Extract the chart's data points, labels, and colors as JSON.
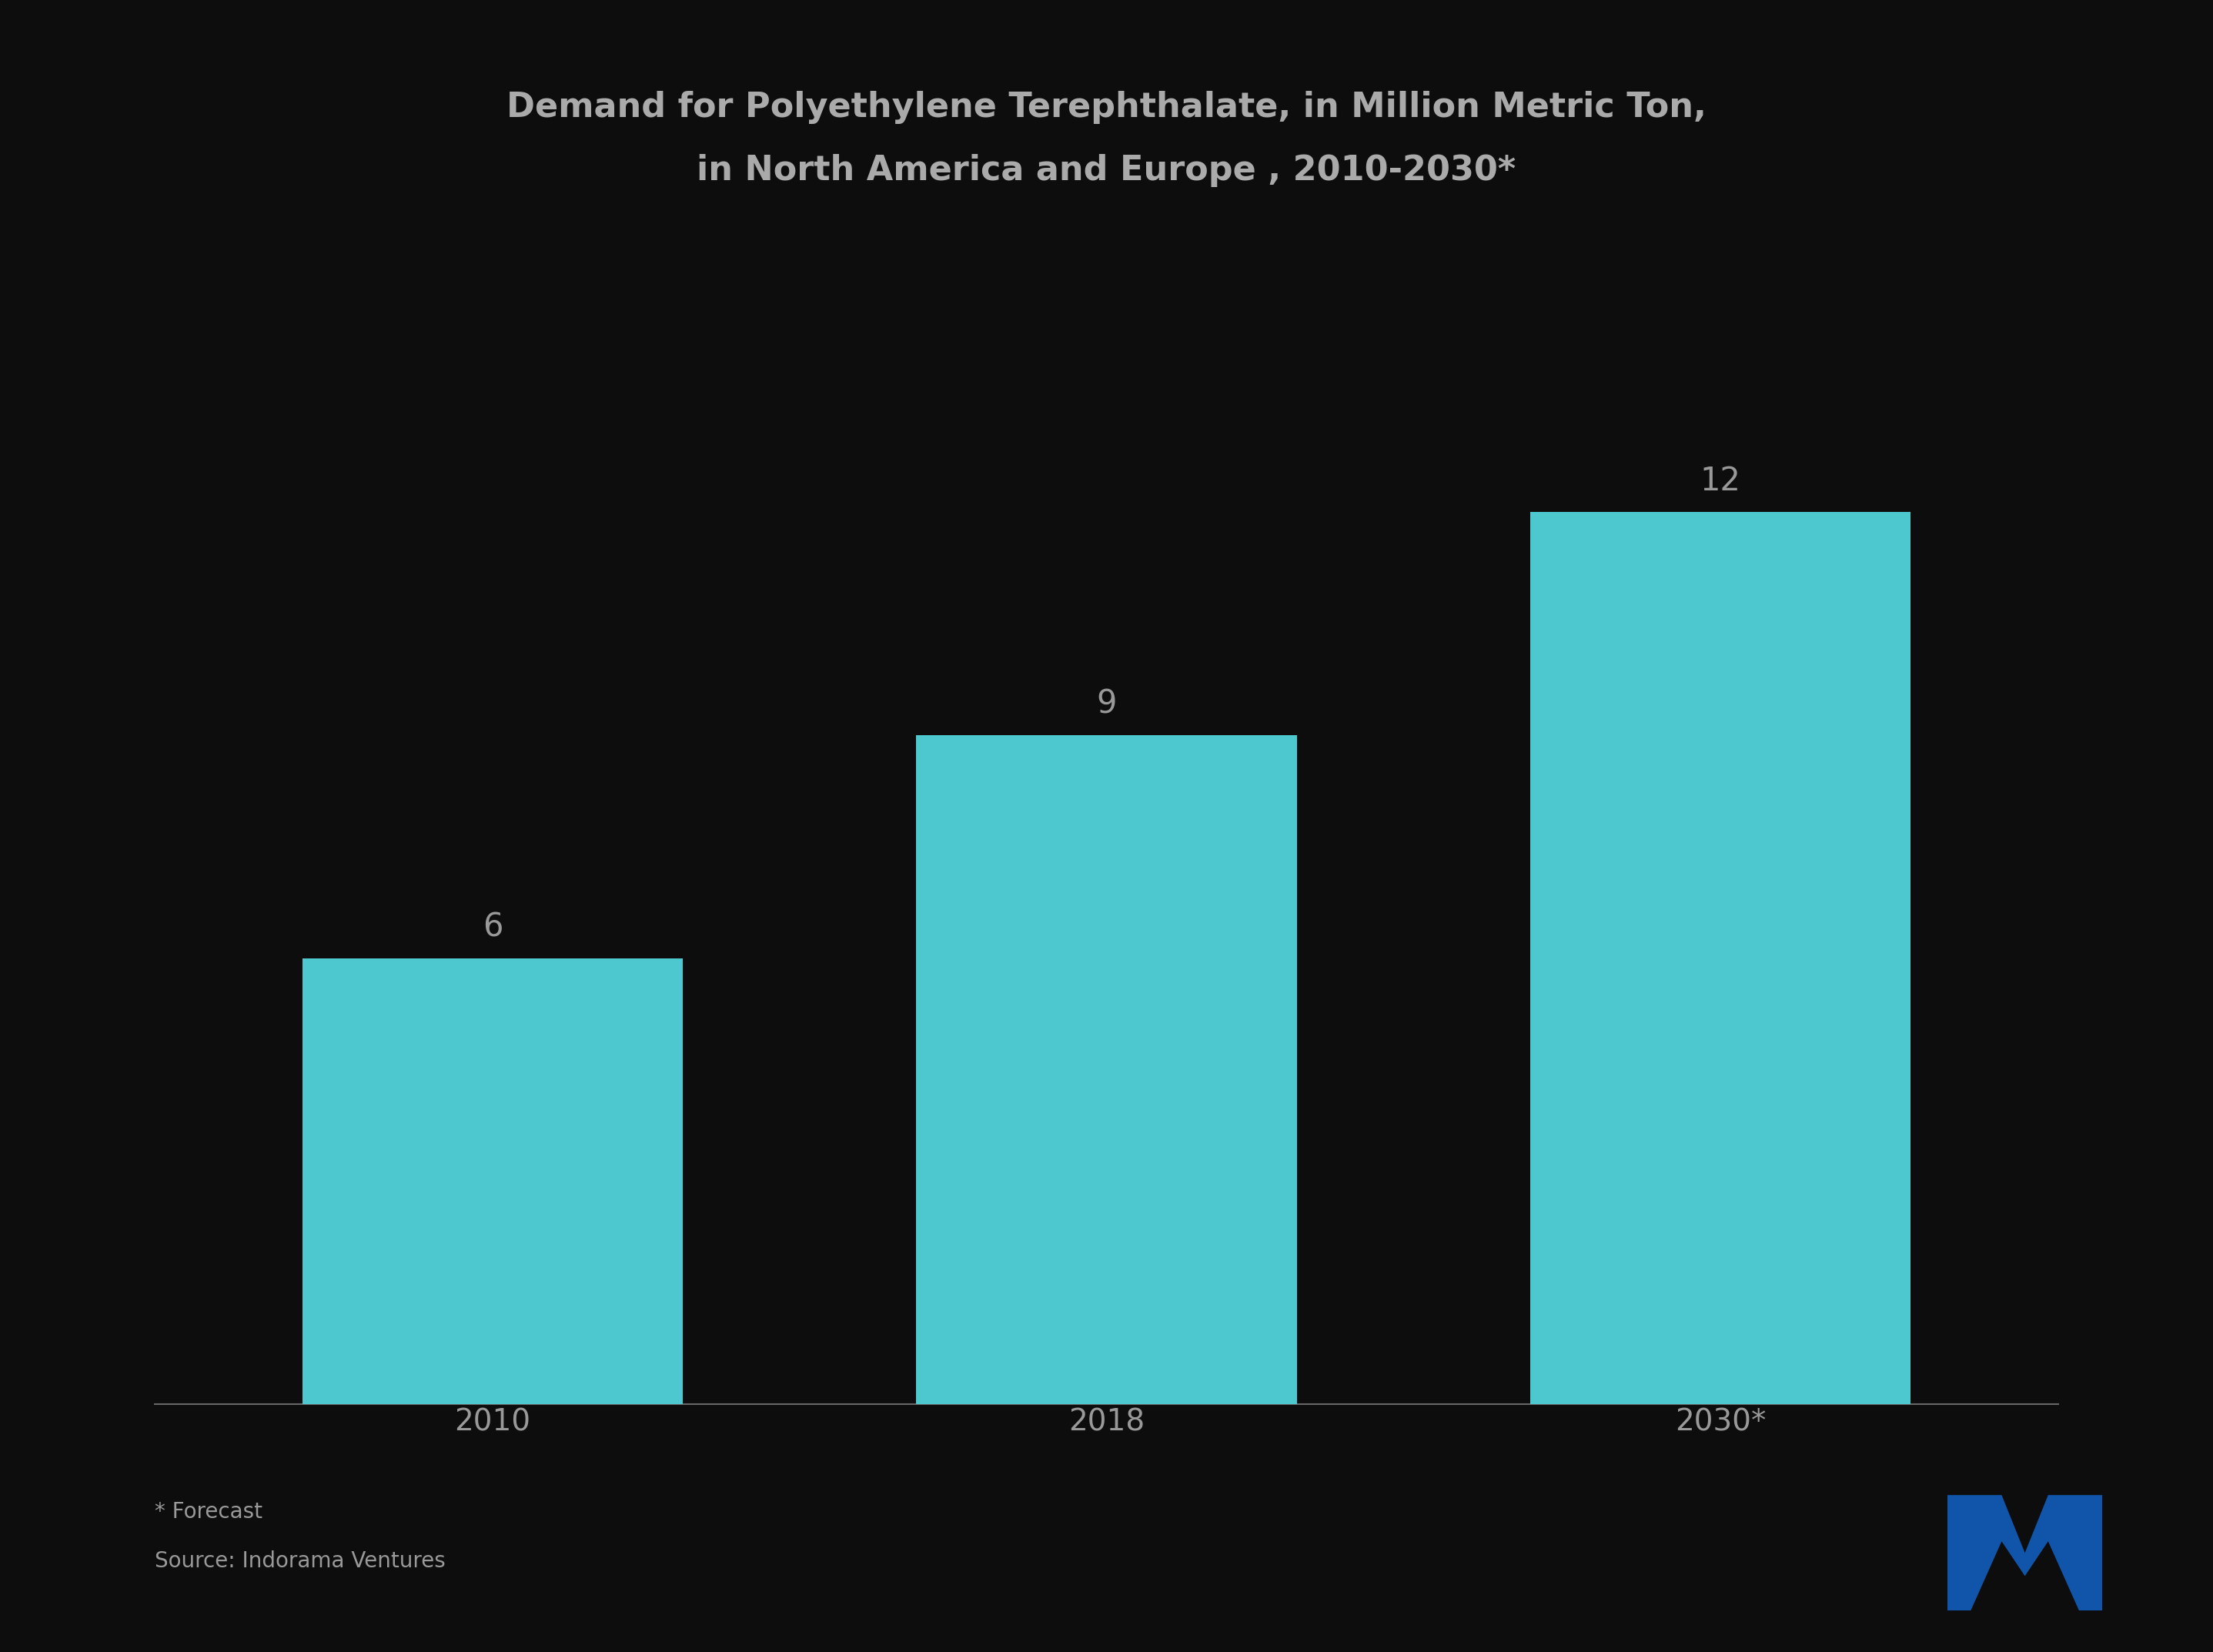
{
  "title_line1": "Demand for Polyethylene Terephthalate, in Million Metric Ton,",
  "title_line2": "in North America and Europe , 2010-2030*",
  "categories": [
    "2010",
    "2018",
    "2030*"
  ],
  "values": [
    6,
    9,
    12
  ],
  "bar_color": "#4DC8CE",
  "background_color": "#0d0d0d",
  "text_color": "#999999",
  "title_color": "#aaaaaa",
  "label_color": "#999999",
  "footnote1": "* Forecast",
  "footnote2": "Source: Indorama Ventures",
  "bar_width": 0.62,
  "ylim": [
    0,
    16
  ],
  "title_fontsize": 32,
  "label_fontsize": 30,
  "tick_fontsize": 28,
  "footnote_fontsize": 20,
  "logo_color": "#1a5fb4"
}
